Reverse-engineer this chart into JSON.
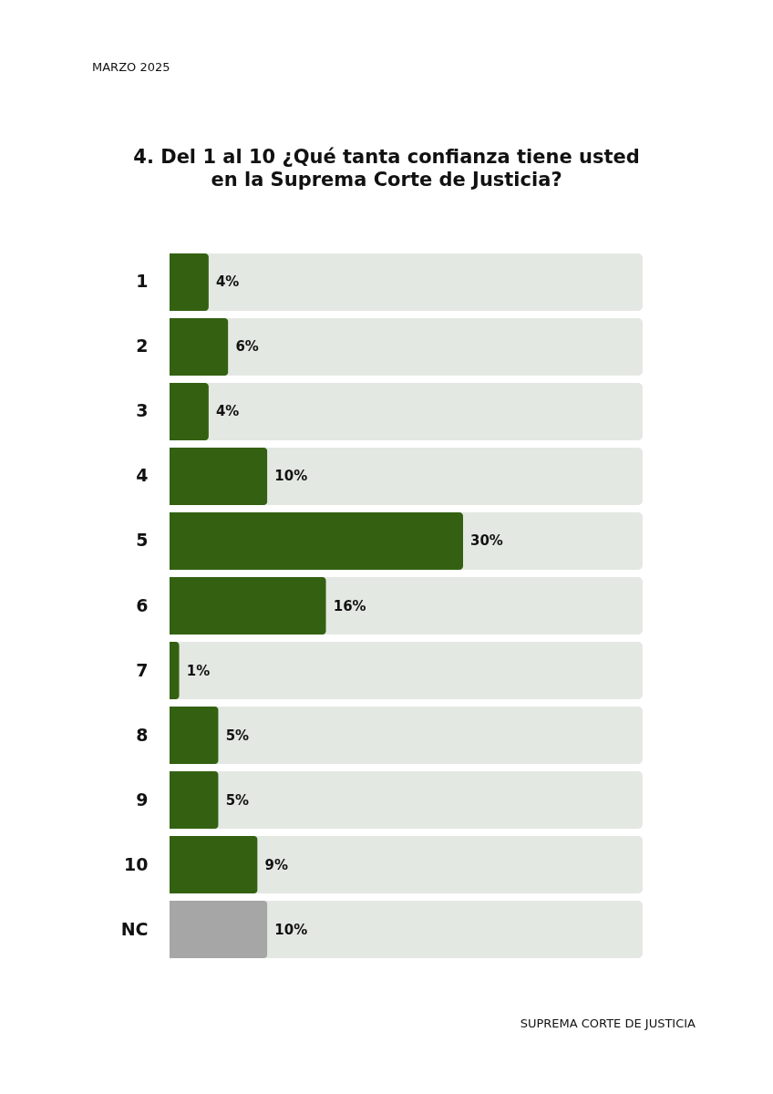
{
  "chart_data": {
    "type": "bar",
    "orientation": "horizontal",
    "title": "4. Del 1 al 10 ¿Qué tanta confianza tiene usted en la Suprema Corte de Justicia?",
    "categories": [
      "1",
      "2",
      "3",
      "4",
      "5",
      "6",
      "7",
      "8",
      "9",
      "10",
      "NC"
    ],
    "values": [
      4,
      6,
      4,
      10,
      30,
      16,
      1,
      5,
      5,
      9,
      10
    ],
    "colors": [
      "#336111",
      "#336111",
      "#336111",
      "#336111",
      "#336111",
      "#336111",
      "#336111",
      "#336111",
      "#336111",
      "#336111",
      "#a6a6a6"
    ],
    "value_labels": [
      "4%",
      "6%",
      "4%",
      "10%",
      "30%",
      "16%",
      "1%",
      "5%",
      "5%",
      "9%",
      "10%"
    ],
    "annotations": [
      "MARZO 2025",
      "SUPREMA CORTE DE JUSTICIA"
    ]
  }
}
